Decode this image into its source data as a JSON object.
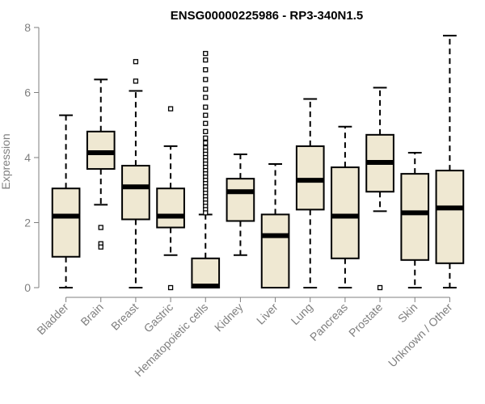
{
  "chart_data": {
    "type": "boxplot",
    "title": "ENSG00000225986 - RP3-340N1.5",
    "xlabel": "",
    "ylabel": "Expression",
    "ylim": [
      0,
      8
    ],
    "yticks": [
      0,
      2,
      4,
      6,
      8
    ],
    "box_fill": "#efe8d2",
    "box_stroke": "#000000",
    "axis_color": "#7f7f7f",
    "categories": [
      "Bladder",
      "Brain",
      "Breast",
      "Gastric",
      "Hematopoietic cells",
      "Kidney",
      "Liver",
      "Lung",
      "Pancreas",
      "Prostate",
      "Skin",
      "Unknown / Other"
    ],
    "boxes": [
      {
        "name": "Bladder",
        "min": 0.0,
        "q1": 0.95,
        "median": 2.2,
        "q3": 3.05,
        "max": 5.3,
        "outliers": []
      },
      {
        "name": "Brain",
        "min": 2.55,
        "q1": 3.65,
        "median": 4.15,
        "q3": 4.8,
        "max": 6.4,
        "outliers": [
          1.85,
          1.35,
          1.25
        ]
      },
      {
        "name": "Breast",
        "min": 0.0,
        "q1": 2.1,
        "median": 3.1,
        "q3": 3.75,
        "max": 6.05,
        "outliers": [
          6.95,
          6.35
        ]
      },
      {
        "name": "Gastric",
        "min": 1.0,
        "q1": 1.85,
        "median": 2.2,
        "q3": 3.05,
        "max": 4.35,
        "outliers": [
          5.5,
          0.0
        ]
      },
      {
        "name": "Hematopoietic cells",
        "min": 0.0,
        "q1": 0.0,
        "median": 0.05,
        "q3": 0.9,
        "max": 2.25,
        "outliers": [
          7.2,
          7.0,
          6.7,
          6.4,
          6.1,
          5.85,
          5.55,
          5.3,
          5.05,
          4.8,
          4.6,
          4.45,
          4.3,
          4.2,
          4.1,
          4.0,
          3.9,
          3.8,
          3.7,
          3.6,
          3.5,
          3.4,
          3.3,
          3.2,
          3.1,
          3.0,
          2.9,
          2.8,
          2.7,
          2.6,
          2.5,
          2.4,
          2.3
        ]
      },
      {
        "name": "Kidney",
        "min": 1.0,
        "q1": 2.05,
        "median": 2.95,
        "q3": 3.35,
        "max": 4.1,
        "outliers": []
      },
      {
        "name": "Liver",
        "min": 0.0,
        "q1": 0.0,
        "median": 1.6,
        "q3": 2.25,
        "max": 3.8,
        "outliers": []
      },
      {
        "name": "Lung",
        "min": 0.0,
        "q1": 2.4,
        "median": 3.3,
        "q3": 4.35,
        "max": 5.8,
        "outliers": []
      },
      {
        "name": "Pancreas",
        "min": 0.0,
        "q1": 0.9,
        "median": 2.2,
        "q3": 3.7,
        "max": 4.95,
        "outliers": []
      },
      {
        "name": "Prostate",
        "min": 2.35,
        "q1": 2.95,
        "median": 3.85,
        "q3": 4.7,
        "max": 6.15,
        "outliers": [
          0.0
        ]
      },
      {
        "name": "Skin",
        "min": 0.0,
        "q1": 0.85,
        "median": 2.3,
        "q3": 3.5,
        "max": 4.15,
        "outliers": []
      },
      {
        "name": "Unknown / Other",
        "min": 0.0,
        "q1": 0.75,
        "median": 2.45,
        "q3": 3.6,
        "max": 7.75,
        "outliers": []
      }
    ]
  }
}
